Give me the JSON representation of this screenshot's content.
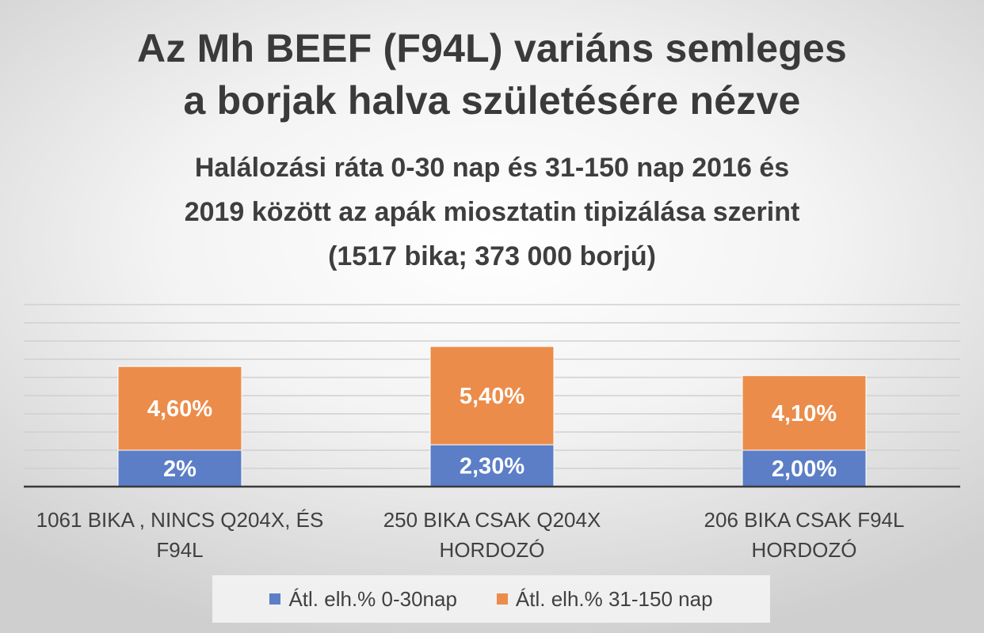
{
  "chart_data": {
    "type": "bar",
    "stacked": true,
    "title": "Az Mh BEEF (F94L) variáns semleges a borjak halva születésére nézve",
    "title_lines": [
      "Az Mh BEEF (F94L) variáns semleges",
      "a borjak halva születésére nézve"
    ],
    "subtitle": "Halálozási ráta 0-30 nap és 31-150 nap 2016 és 2019 között az apák miosztatin tipizálása szerint (1517 bika; 373 000 borjú)",
    "subtitle_lines": [
      "Halálozási ráta 0-30 nap és 31-150 nap 2016 és",
      "2019 között az apák miosztatin tipizálása szerint",
      "(1517 bika; 373 000 borjú)"
    ],
    "categories": [
      "1061 BIKA , NINCS Q204X, ÉS F94L",
      "250 BIKA  CSAK Q204X HORDOZÓ",
      "206 BIKA CSAK F94L HORDOZÓ"
    ],
    "category_lines": [
      [
        "1061 BIKA , NINCS Q204X, ÉS",
        "F94L"
      ],
      [
        "250 BIKA  CSAK Q204X",
        "HORDOZÓ"
      ],
      [
        "206 BIKA CSAK F94L",
        "HORDOZÓ"
      ]
    ],
    "series": [
      {
        "name": "Átl. elh.% 0-30nap",
        "values": [
          2.0,
          2.3,
          2.0
        ],
        "labels": [
          "2%",
          "2,30%",
          "2,00%"
        ],
        "color": "#5b7ec6"
      },
      {
        "name": "Átl. elh.% 31-150 nap",
        "values": [
          4.6,
          5.4,
          4.1
        ],
        "labels": [
          "4,60%",
          "5,40%",
          "4,10%"
        ],
        "color": "#ec8c4a"
      }
    ],
    "ylim": [
      0,
      10
    ],
    "grid": true,
    "legend_position": "bottom"
  }
}
